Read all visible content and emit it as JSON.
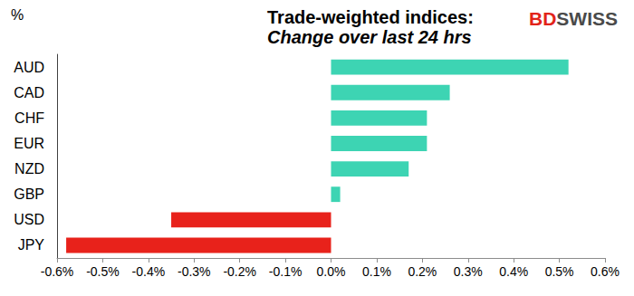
{
  "chart_data": {
    "type": "bar",
    "orientation": "horizontal",
    "title": "Trade-weighted indices:",
    "subtitle": "Change over last 24 hrs",
    "xlabel": "%",
    "annotations": [
      "BDSWISS"
    ],
    "categories": [
      "AUD",
      "CAD",
      "CHF",
      "EUR",
      "NZD",
      "GBP",
      "USD",
      "JPY"
    ],
    "values": [
      0.52,
      0.26,
      0.21,
      0.21,
      0.17,
      0.02,
      -0.35,
      -0.58
    ],
    "colors": [
      "#3dd4b3",
      "#3dd4b3",
      "#3dd4b3",
      "#3dd4b3",
      "#3dd4b3",
      "#3dd4b3",
      "#e8221b",
      "#e8221b"
    ],
    "xlim": [
      -0.6,
      0.6
    ],
    "xticks": [
      {
        "value": -0.6,
        "label": "-0.6%"
      },
      {
        "value": -0.5,
        "label": "-0.5%"
      },
      {
        "value": -0.4,
        "label": "-0.4%"
      },
      {
        "value": -0.3,
        "label": "-0.3%"
      },
      {
        "value": -0.2,
        "label": "-0.2%"
      },
      {
        "value": -0.1,
        "label": "-0.1%"
      },
      {
        "value": 0,
        "label": "0.0%"
      },
      {
        "value": 0.1,
        "label": "0.1%"
      },
      {
        "value": 0.2,
        "label": "0.2%"
      },
      {
        "value": 0.3,
        "label": "0.3%"
      },
      {
        "value": 0.4,
        "label": "0.4%"
      },
      {
        "value": 0.5,
        "label": "0.5%"
      },
      {
        "value": 0.6,
        "label": "0.6%"
      }
    ],
    "grid": false
  }
}
